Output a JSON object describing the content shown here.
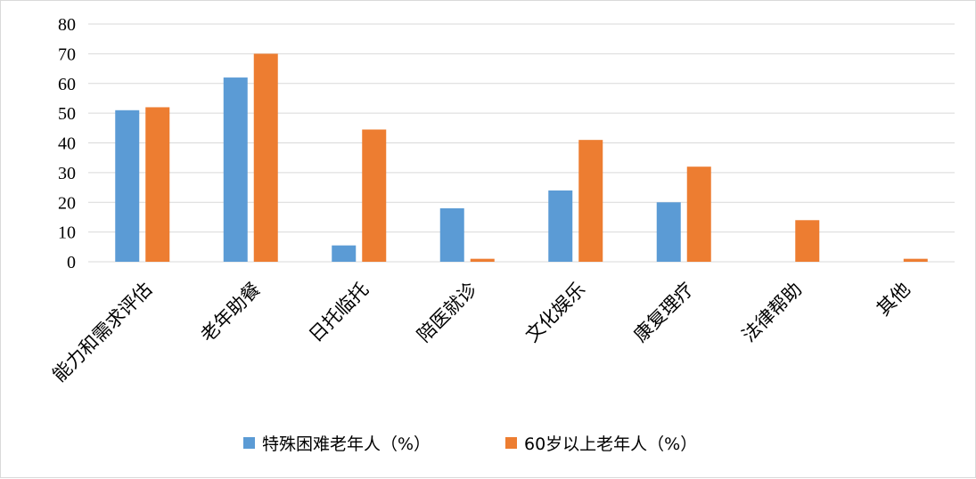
{
  "chart_data": {
    "type": "bar",
    "title": "",
    "xlabel": "",
    "ylabel": "",
    "ylim": [
      0,
      80
    ],
    "yticks": [
      0,
      10,
      20,
      30,
      40,
      50,
      60,
      70,
      80
    ],
    "grid": true,
    "legend_position": "bottom",
    "categories": [
      "能力和需求评估",
      "老年助餐",
      "日托临托",
      "陪医就诊",
      "文化娱乐",
      "康复理疗",
      "法律帮助",
      "其他"
    ],
    "series": [
      {
        "name": "特殊困难老年人（%）",
        "color": "#5b9bd5",
        "values": [
          51,
          62,
          5.5,
          18,
          24,
          20,
          0,
          0
        ]
      },
      {
        "name": "60岁以上老年人（%）",
        "color": "#ed7d31",
        "values": [
          52,
          70,
          44.5,
          1,
          41,
          32,
          14,
          1
        ]
      }
    ]
  }
}
